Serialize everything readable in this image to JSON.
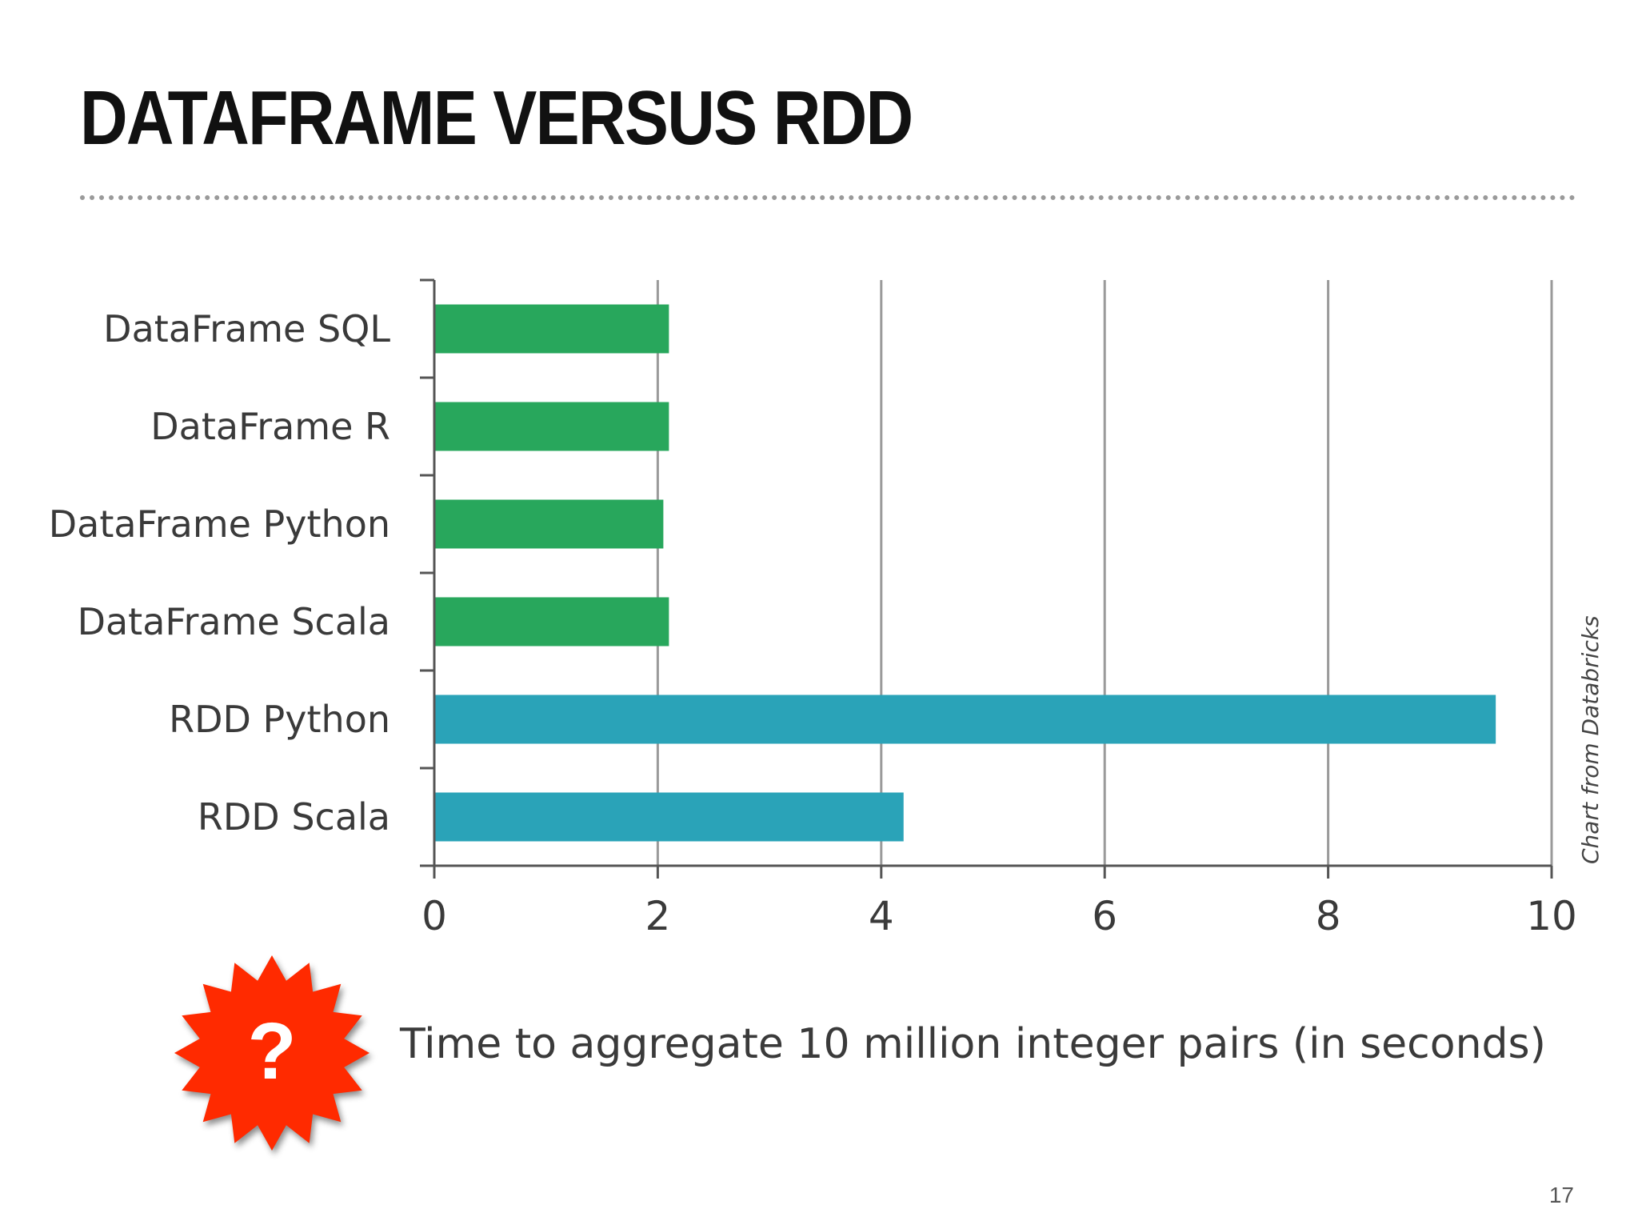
{
  "slide": {
    "title": "DATAFRAME VERSUS RDD",
    "page_number": "17",
    "credit": "Chart from Databricks",
    "badge_text": "?",
    "badge_color": "#ff2a00"
  },
  "chart_data": {
    "type": "bar",
    "orientation": "horizontal",
    "categories": [
      "DataFrame SQL",
      "DataFrame R",
      "DataFrame Python",
      "DataFrame Scala",
      "RDD Python",
      "RDD Scala"
    ],
    "values": [
      2.1,
      2.1,
      2.05,
      2.1,
      9.5,
      4.2
    ],
    "colors": [
      "#28a75c",
      "#28a75c",
      "#28a75c",
      "#28a75c",
      "#2aa3b8",
      "#2aa3b8"
    ],
    "xlabel": "Time to aggregate 10 million integer pairs (in seconds)",
    "xlim": [
      0,
      10
    ],
    "xticks": [
      "0",
      "2",
      "4",
      "6",
      "8",
      "10"
    ],
    "grid": true,
    "legend": "none"
  }
}
